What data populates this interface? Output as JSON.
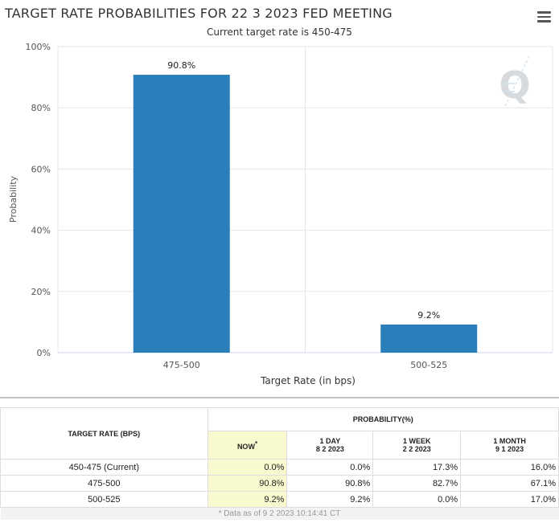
{
  "header": {
    "title": "TARGET RATE PROBABILITIES FOR 22 3 2023 FED MEETING",
    "subtitle": "Current target rate is 450-475"
  },
  "chart_data": {
    "type": "bar",
    "title": "TARGET RATE PROBABILITIES FOR 22 3 2023 FED MEETING",
    "subtitle": "Current target rate is 450-475",
    "categories": [
      "475-500",
      "500-525"
    ],
    "values": [
      90.8,
      9.2
    ],
    "data_labels": [
      "90.8%",
      "9.2%"
    ],
    "xlabel": "Target Rate (in bps)",
    "ylabel": "Probability",
    "ylim": [
      0,
      100
    ],
    "yticks": [
      "0%",
      "20%",
      "40%",
      "60%",
      "80%",
      "100%"
    ],
    "grid": true,
    "bar_color": "#2a7fba",
    "legend": "none"
  },
  "table": {
    "col_target": "TARGET RATE (BPS)",
    "col_probability": "PROBABILITY(%)",
    "sub_headers": [
      {
        "line1": "NOW",
        "line2": "",
        "star": "*"
      },
      {
        "line1": "1 DAY",
        "line2": "8 2 2023",
        "star": ""
      },
      {
        "line1": "1 WEEK",
        "line2": "2 2 2023",
        "star": ""
      },
      {
        "line1": "1 MONTH",
        "line2": "9 1 2023",
        "star": ""
      }
    ],
    "rows": [
      {
        "label": "450-475 (Current)",
        "values": [
          "0.0%",
          "0.0%",
          "17.3%",
          "16.0%"
        ]
      },
      {
        "label": "475-500",
        "values": [
          "90.8%",
          "90.8%",
          "82.7%",
          "67.1%"
        ]
      },
      {
        "label": "500-525",
        "values": [
          "9.2%",
          "9.2%",
          "0.0%",
          "17.0%"
        ]
      }
    ],
    "footnote": "* Data as of 9 2 2023 10:14:41 CT"
  },
  "colors": {
    "now_highlight": "#f9f9cf",
    "watermark": "#cfe4f2"
  }
}
